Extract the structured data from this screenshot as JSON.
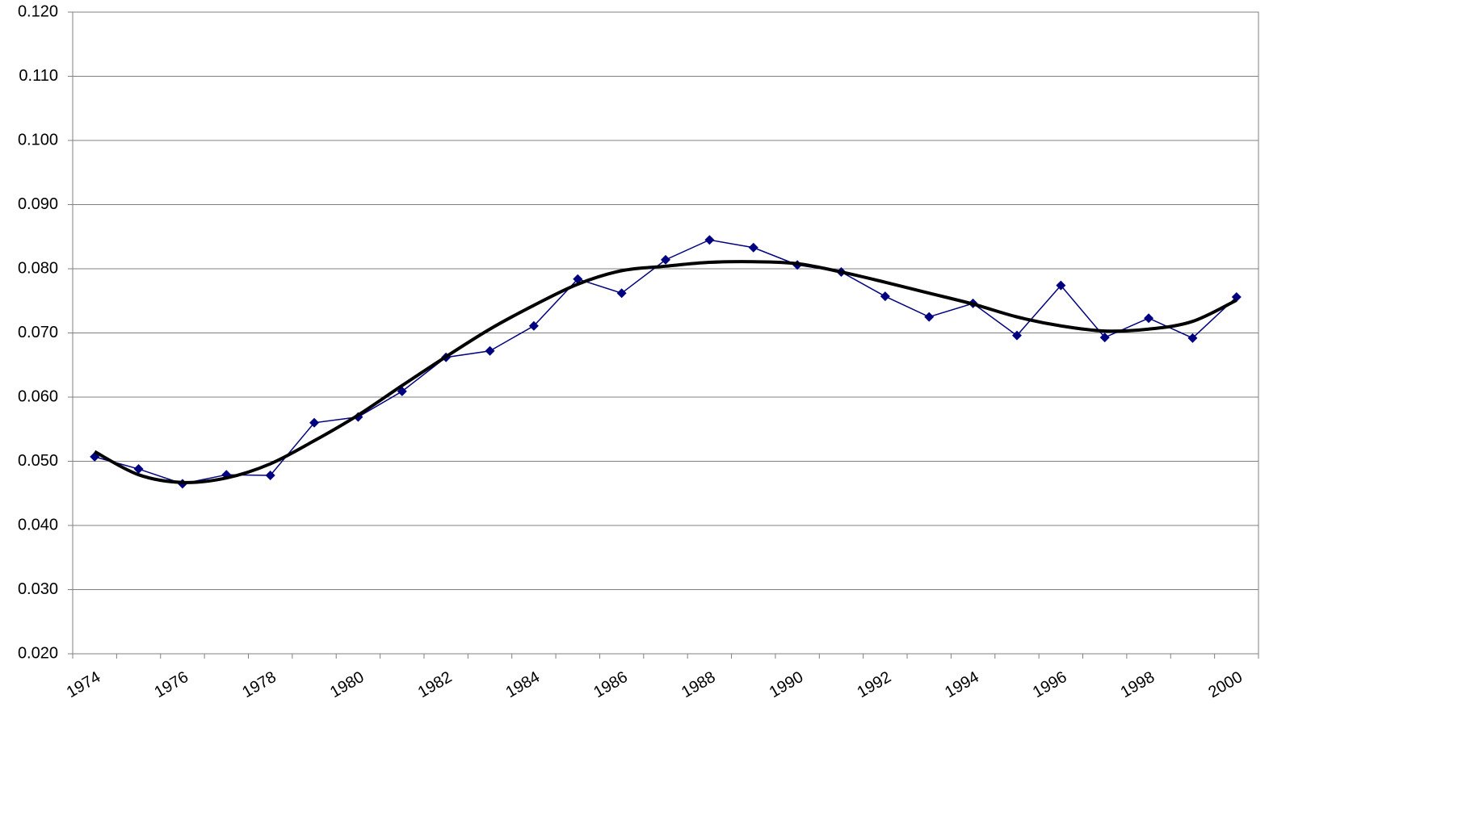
{
  "chart_data": {
    "type": "line",
    "categories": [
      "1974",
      null,
      "1976",
      null,
      "1978",
      null,
      "1980",
      null,
      "1982",
      null,
      "1984",
      null,
      "1986",
      null,
      "1988",
      null,
      "1990",
      null,
      "1992",
      null,
      "1994",
      null,
      "1996",
      null,
      "1998",
      null,
      "2000"
    ],
    "series": [
      {
        "color": "#000080",
        "marker": "diamond",
        "smooth": false,
        "values": [
          0.0507,
          0.0488,
          0.0465,
          0.0479,
          0.0478,
          0.056,
          0.0569,
          0.0609,
          0.0662,
          0.0672,
          0.0711,
          0.0784,
          0.0762,
          0.0814,
          0.0845,
          0.0833,
          0.0806,
          0.0795,
          0.0757,
          0.0725,
          0.0746,
          0.0696,
          0.0774,
          0.0693,
          0.0723,
          0.0692,
          0.0756
        ]
      },
      {
        "color": "#000000",
        "marker": "none",
        "smooth": true,
        "values": [
          0.0515,
          0.0479,
          0.0467,
          0.0474,
          0.0496,
          0.0532,
          0.0572,
          0.0618,
          0.0663,
          0.0706,
          0.0743,
          0.0776,
          0.0797,
          0.0804,
          0.081,
          0.0811,
          0.0808,
          0.0795,
          0.0779,
          0.0762,
          0.0745,
          0.0725,
          0.0711,
          0.0703,
          0.0706,
          0.0718,
          0.0751
        ]
      }
    ],
    "ylim": [
      0.02,
      0.12
    ],
    "yticks": [
      {
        "value": 0.02,
        "label": "0.020"
      },
      {
        "value": 0.03,
        "label": "0.030"
      },
      {
        "value": 0.04,
        "label": "0.040"
      },
      {
        "value": 0.05,
        "label": "0.050"
      },
      {
        "value": 0.06,
        "label": "0.060"
      },
      {
        "value": 0.07,
        "label": "0.070"
      },
      {
        "value": 0.08,
        "label": "0.080"
      },
      {
        "value": 0.09,
        "label": "0.090"
      },
      {
        "value": 0.1,
        "label": "0.100"
      },
      {
        "value": 0.11,
        "label": "0.110"
      },
      {
        "value": 0.12,
        "label": "0.120"
      }
    ],
    "grid": true
  }
}
